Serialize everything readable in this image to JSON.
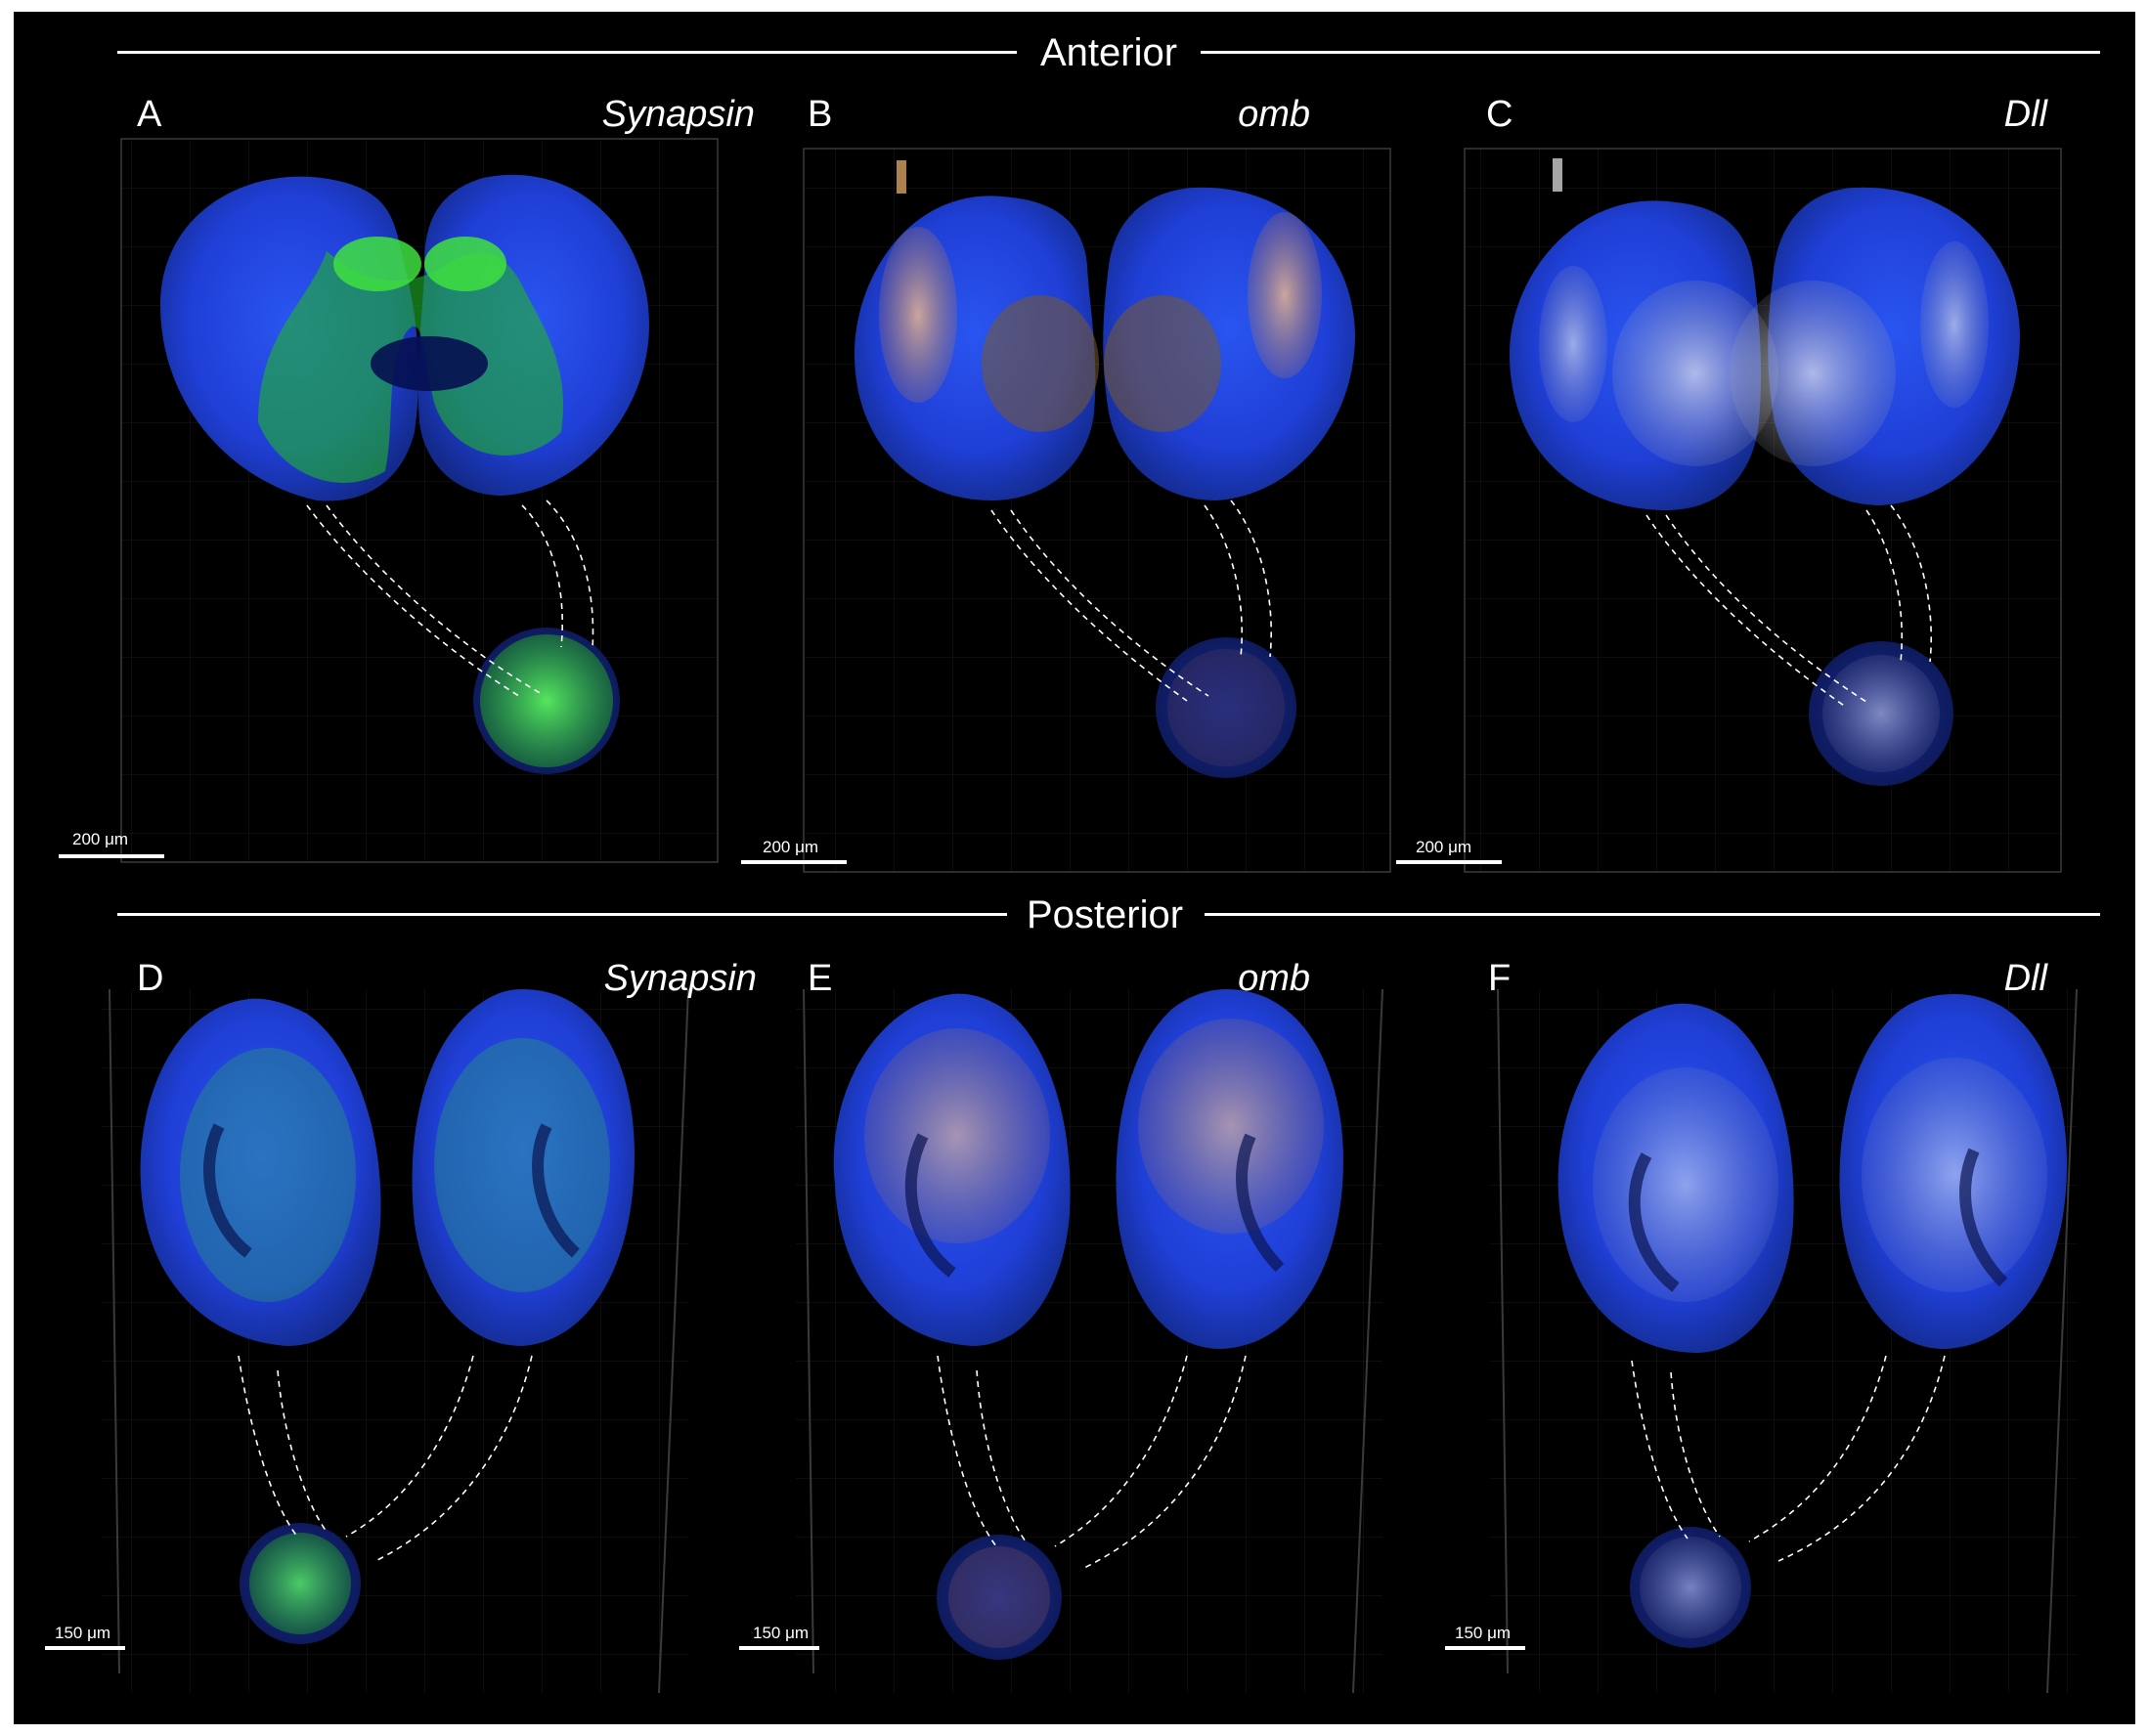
{
  "figure": {
    "sections": {
      "anterior": "Anterior",
      "posterior": "Posterior"
    },
    "panels": [
      {
        "letter": "A",
        "gene": "Synapsin",
        "scale": "200 μm",
        "label_color": "#39d13c"
      },
      {
        "letter": "B",
        "gene": "omb",
        "scale": "200 μm",
        "label_color": "#f2a04a"
      },
      {
        "letter": "C",
        "gene": "Dll",
        "scale": "200 μm",
        "label_color": "#e8e8e8"
      },
      {
        "letter": "D",
        "gene": "Synapsin",
        "scale": "150 μm",
        "label_color": "#39d13c"
      },
      {
        "letter": "E",
        "gene": "omb",
        "scale": "150 μm",
        "label_color": "#f2a04a"
      },
      {
        "letter": "F",
        "gene": "Dll",
        "scale": "150 μm",
        "label_color": "#e8e8e8"
      }
    ],
    "colors": {
      "background": "#000000",
      "nuclear_stain": "#1f3fd6",
      "synapsin": "#39d13c",
      "omb": "#f2a04a",
      "dll": "#e8e8e8"
    }
  }
}
